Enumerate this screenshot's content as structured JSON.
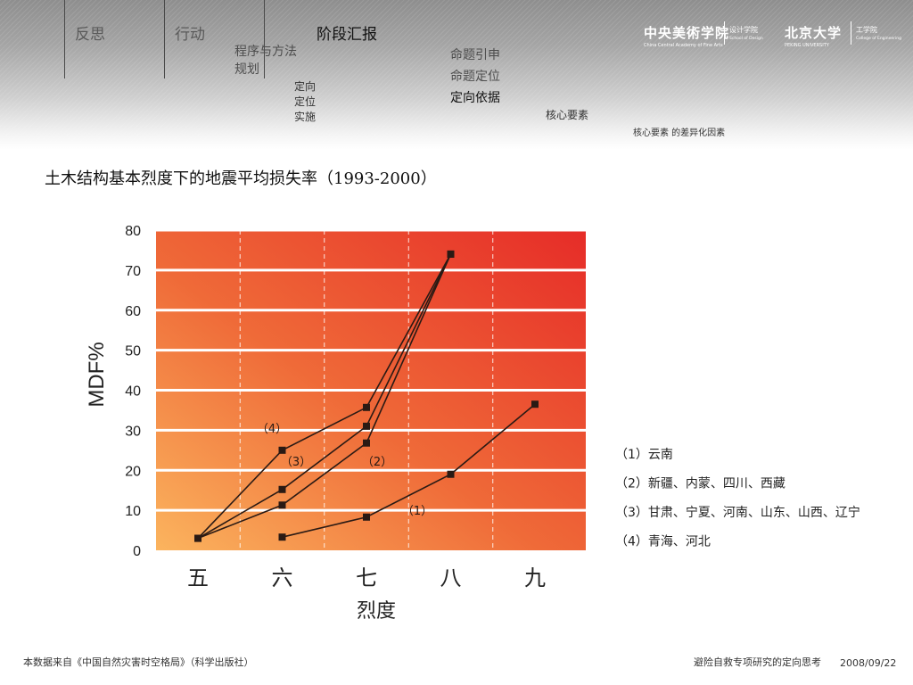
{
  "header": {
    "nav": [
      "反思",
      "行动",
      "阶段汇报"
    ],
    "sub_plan": [
      "程序与方法",
      "规划"
    ],
    "sub_steps": [
      "定向",
      "定位",
      "实施"
    ],
    "sub_propositions": [
      "命题引申",
      "命题定位",
      "定向依据"
    ],
    "core": "核心要素",
    "core_diff": "核心要素 的差异化因素"
  },
  "logos": {
    "cafa_cn": "中央美術学院",
    "cafa_en": "China Central Academy of Fine Arts",
    "cafa_school": "设计学院",
    "cafa_school_en": "School of Design",
    "pku_cn": "北京大学",
    "pku_en": "PEKING UNIVERSITY",
    "pku_school": "工学院",
    "pku_school_en": "College of Engineering"
  },
  "page_title": "土木结构基本烈度下的地震平均损失率（1993-2000）",
  "chart_data": {
    "type": "line",
    "xlabel": "烈度",
    "ylabel": "MDF%",
    "categories": [
      "五",
      "六",
      "七",
      "八",
      "九"
    ],
    "ylim": [
      0,
      80
    ],
    "yticks": [
      0,
      10,
      20,
      30,
      40,
      50,
      60,
      70,
      80
    ],
    "grid": "horizontal solid white, vertical dashed",
    "background": "gradient orange to red",
    "legend_position": "right",
    "series": [
      {
        "name": "（1）云南",
        "label": "（1）",
        "points": [
          [
            6,
            3.3
          ],
          [
            7,
            8.3
          ],
          [
            8,
            19
          ],
          [
            9,
            36.5
          ]
        ]
      },
      {
        "name": "（2）新疆、内蒙、四川、西藏",
        "label": "（2）",
        "points": [
          [
            5,
            3
          ],
          [
            6,
            11.3
          ],
          [
            7,
            26.8
          ],
          [
            8,
            74
          ]
        ]
      },
      {
        "name": "（3）甘肃、宁夏、河南、山东、山西、辽宁",
        "label": "（3）",
        "points": [
          [
            5,
            3
          ],
          [
            6,
            15.2
          ],
          [
            7,
            31
          ],
          [
            8,
            74
          ]
        ]
      },
      {
        "name": "（4）青海、河北",
        "label": "（4）",
        "points": [
          [
            5,
            3
          ],
          [
            6,
            25
          ],
          [
            7,
            35.7
          ],
          [
            8,
            74
          ]
        ]
      }
    ]
  },
  "footer": {
    "source": "本数据来自《中国自然灾害时空格局》（科学出版社）",
    "topic": "避险自救专项研究的定向思考",
    "date": "2008/09/22"
  },
  "colors": {
    "plot_light": "#fbb45e",
    "plot_mid": "#ef6a38",
    "plot_dark": "#e62c28",
    "line": "#2a1a14"
  }
}
